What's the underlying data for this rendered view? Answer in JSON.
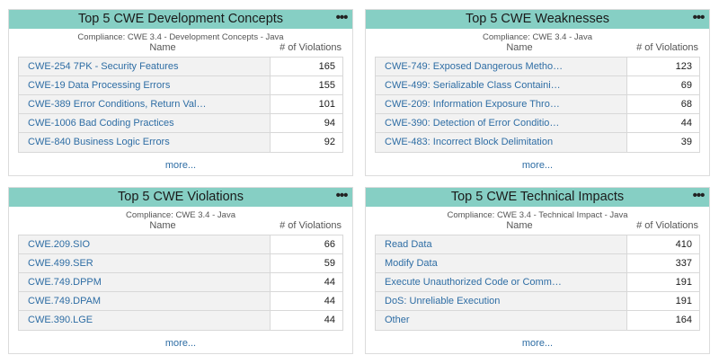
{
  "widgets": [
    {
      "title": "Top 5 CWE Development Concepts",
      "subtitle": "Compliance: CWE 3.4 - Development Concepts - Java",
      "col_name": "Name",
      "col_num": "# of Violations",
      "menu": "•••",
      "more": "more...",
      "rows": [
        {
          "name": "CWE-254 7PK - Security Features",
          "count": "165"
        },
        {
          "name": "CWE-19 Data Processing Errors",
          "count": "155"
        },
        {
          "name": "CWE-389 Error Conditions, Return Val…",
          "count": "101"
        },
        {
          "name": "CWE-1006 Bad Coding Practices",
          "count": "94"
        },
        {
          "name": "CWE-840 Business Logic Errors",
          "count": "92"
        }
      ]
    },
    {
      "title": "Top 5 CWE Weaknesses",
      "subtitle": "Compliance: CWE 3.4 - Java",
      "col_name": "Name",
      "col_num": "# of Violations",
      "menu": "•••",
      "more": "more...",
      "rows": [
        {
          "name": "CWE-749: Exposed Dangerous Metho…",
          "count": "123"
        },
        {
          "name": "CWE-499: Serializable Class Containi…",
          "count": "69"
        },
        {
          "name": "CWE-209: Information Exposure Thro…",
          "count": "68"
        },
        {
          "name": "CWE-390: Detection of Error Conditio…",
          "count": "44"
        },
        {
          "name": "CWE-483: Incorrect Block Delimitation",
          "count": "39"
        }
      ]
    },
    {
      "title": "Top 5 CWE Violations",
      "subtitle": "Compliance: CWE 3.4 - Java",
      "col_name": "Name",
      "col_num": "# of Violations",
      "menu": "•••",
      "more": "more...",
      "rows": [
        {
          "name": "CWE.209.SIO",
          "count": "66"
        },
        {
          "name": "CWE.499.SER",
          "count": "59"
        },
        {
          "name": "CWE.749.DPPM",
          "count": "44"
        },
        {
          "name": "CWE.749.DPAM",
          "count": "44"
        },
        {
          "name": "CWE.390.LGE",
          "count": "44"
        }
      ]
    },
    {
      "title": "Top 5 CWE Technical Impacts",
      "subtitle": "Compliance: CWE 3.4 - Technical Impact - Java",
      "col_name": "Name",
      "col_num": "# of Violations",
      "menu": "•••",
      "more": "more...",
      "rows": [
        {
          "name": "Read Data",
          "count": "410"
        },
        {
          "name": "Modify Data",
          "count": "337"
        },
        {
          "name": "Execute Unauthorized Code or Comm…",
          "count": "191"
        },
        {
          "name": "DoS: Unreliable Execution",
          "count": "191"
        },
        {
          "name": "Other",
          "count": "164"
        }
      ]
    }
  ]
}
